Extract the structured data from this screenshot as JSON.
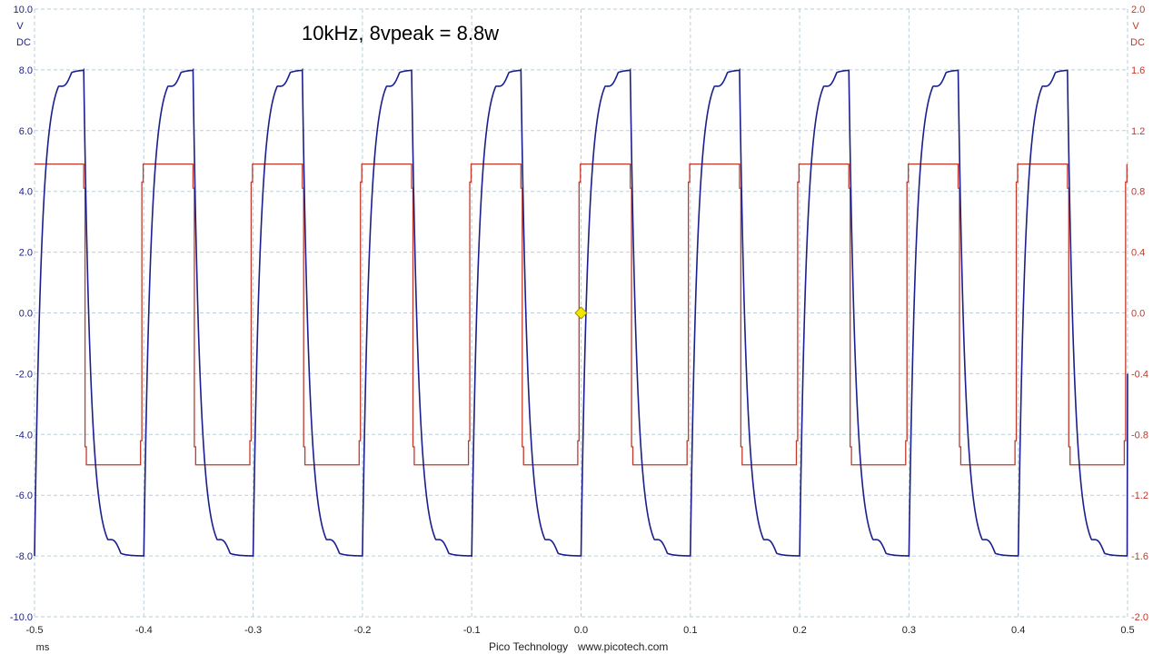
{
  "chart_data": {
    "type": "line",
    "title": "10kHz, 8vpeak = 8.8w",
    "x_unit": "ms",
    "xlim": [
      -0.5,
      0.5
    ],
    "x_ticks": [
      "-0.5",
      "-0.4",
      "-0.3",
      "-0.2",
      "-0.1",
      "0.0",
      "0.1",
      "0.2",
      "0.3",
      "0.4",
      "0.5"
    ],
    "left_axis": {
      "unit": "V",
      "coupling": "DC",
      "ylim": [
        -10,
        10
      ],
      "ticks": [
        "10.0",
        "8.0",
        "6.0",
        "4.0",
        "2.0",
        "0.0",
        "-2.0",
        "-4.0",
        "-6.0",
        "-8.0",
        "-10.0"
      ],
      "color": "#1a1f8c"
    },
    "right_axis": {
      "unit": "V",
      "coupling": "DC",
      "ylim": [
        -2,
        2
      ],
      "ticks": [
        "2.0",
        "1.6",
        "1.2",
        "0.8",
        "0.4",
        "0.0",
        "-0.4",
        "-0.8",
        "-1.2",
        "-1.6",
        "-2.0"
      ],
      "color": "#c0392b"
    },
    "grid": true,
    "series": [
      {
        "axis": "left",
        "color": "#1a1f8c",
        "frequency_khz": 10,
        "high_v": 8.0,
        "low_v": -8.0,
        "rising_edges_ms": [
          -0.5,
          -0.4,
          -0.3,
          -0.2,
          -0.1,
          0.0,
          0.1,
          0.2,
          0.3,
          0.4
        ],
        "falling_edges_ms": [
          -0.455,
          -0.355,
          -0.255,
          -0.155,
          -0.055,
          0.045,
          0.145,
          0.245,
          0.345,
          0.445
        ],
        "end_value_v": -2.0
      },
      {
        "axis": "right",
        "color": "#c0392b",
        "frequency_khz": 10,
        "high_v": 0.98,
        "low_v": -1.0,
        "rising_edges_ms": [
          -0.403,
          -0.303,
          -0.203,
          -0.103,
          -0.003,
          0.097,
          0.197,
          0.297,
          0.397,
          0.497
        ],
        "falling_edges_ms": [
          -0.455,
          -0.355,
          -0.255,
          -0.155,
          -0.055,
          0.045,
          0.145,
          0.245,
          0.345,
          0.445
        ]
      }
    ],
    "trigger_marker": {
      "x_ms": 0.0,
      "y_v": 0.0,
      "color": "#f2e600"
    }
  },
  "footer": {
    "brand": "Pico Technology",
    "url": "www.picotech.com"
  }
}
